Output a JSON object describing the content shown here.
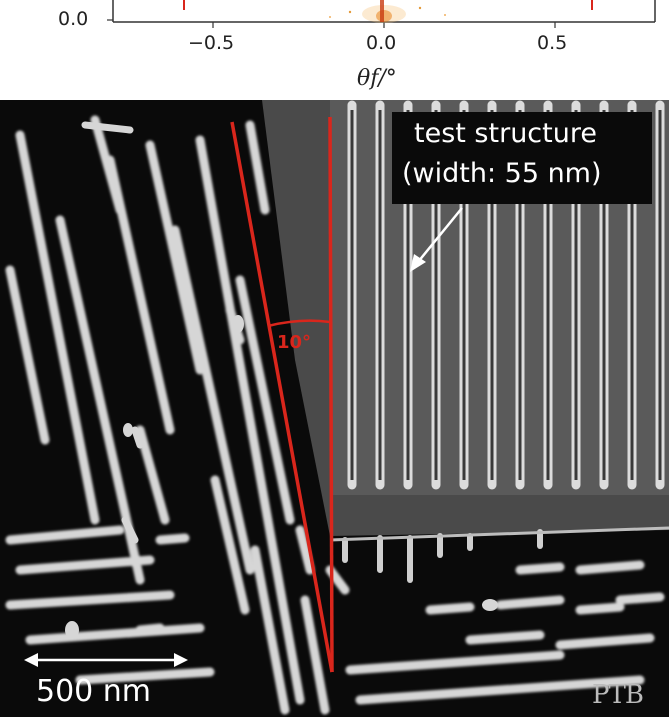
{
  "plot": {
    "y_tick": "0.0",
    "x_ticks": [
      "−0.5",
      "0.0",
      "0.5"
    ],
    "x_axis_label": "θf/°"
  },
  "sem": {
    "label_line1": "test structure",
    "label_line2": "(width: 55 nm)",
    "angle_label": "10°",
    "scale_label": "500 nm",
    "watermark": "PTB"
  },
  "colors": {
    "annotation_red": "#d9261c",
    "feature_gray": "#d8d8d8",
    "background": "#0a0a0a"
  }
}
